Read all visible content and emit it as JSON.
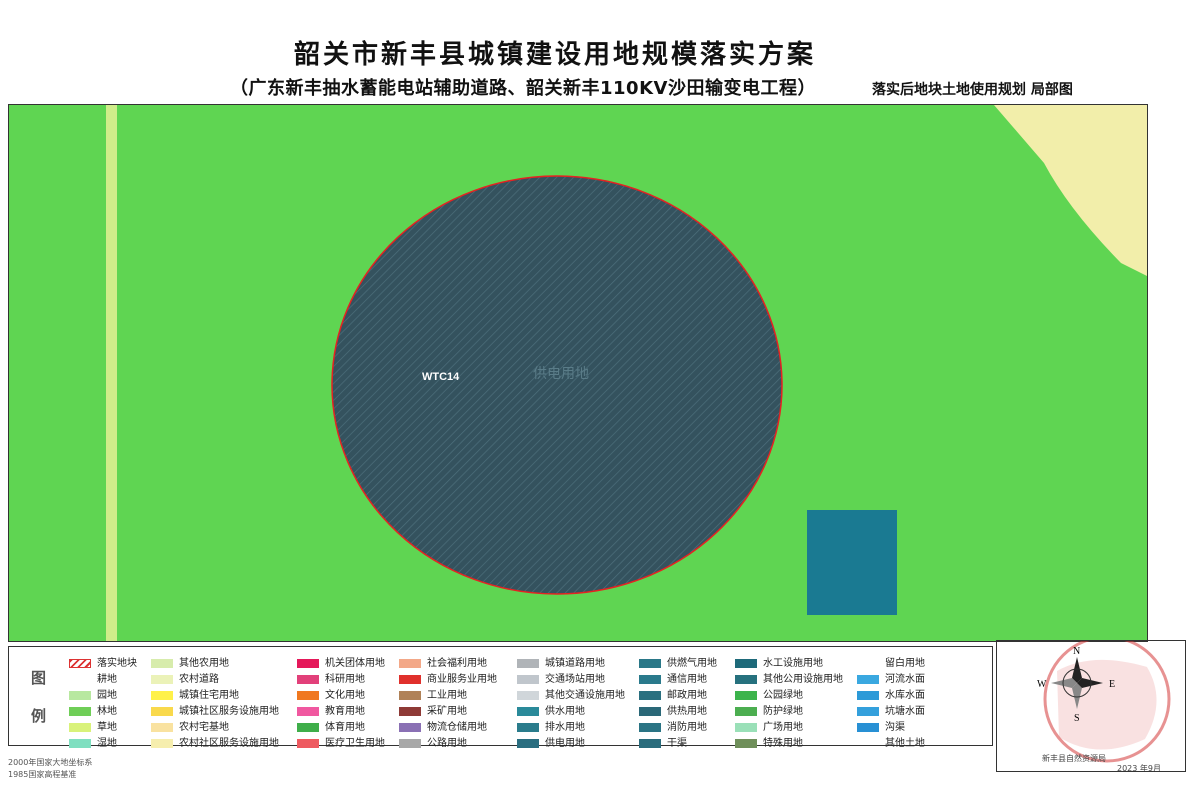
{
  "title": "韶关市新丰县城镇建设用地规模落实方案",
  "subtitle": "（广东新丰抽水蓄能电站辅助道路、韶关新丰110KV沙田输变电工程）",
  "map_caption": "落实后地块土地使用规划 局部图",
  "map": {
    "parcel_code": "WTC14",
    "parcel_label": "供电用地",
    "colors": {
      "background": "#5fd552",
      "stripe": "#f6f49e",
      "parcel": "#34525e",
      "parcel_outline": "#e52222",
      "beige": "#f2eeaa",
      "square": "#1a7a92"
    }
  },
  "legend": {
    "title_top": "图",
    "title_bottom": "例",
    "items": [
      {
        "label": "落实地块",
        "color": "hatch",
        "col": 0,
        "row": 0
      },
      {
        "label": "耕地",
        "color": "none",
        "col": 0,
        "row": 1
      },
      {
        "label": "园地",
        "color": "#b8e8a0",
        "col": 0,
        "row": 2
      },
      {
        "label": "林地",
        "color": "#6fce57",
        "col": 0,
        "row": 3
      },
      {
        "label": "草地",
        "color": "#d9f27a",
        "col": 0,
        "row": 4
      },
      {
        "label": "湿地",
        "color": "#7fdfc0",
        "col": 0,
        "row": 5
      },
      {
        "label": "其他农用地",
        "color": "#d7ecac",
        "col": 1,
        "row": 0
      },
      {
        "label": "农村道路",
        "color": "#ebf2b8",
        "col": 1,
        "row": 1
      },
      {
        "label": "城镇住宅用地",
        "color": "#fff14a",
        "col": 1,
        "row": 2
      },
      {
        "label": "城镇社区服务设施用地",
        "color": "#f9d94c",
        "col": 1,
        "row": 3
      },
      {
        "label": "农村宅基地",
        "color": "#f9e2a0",
        "col": 1,
        "row": 4
      },
      {
        "label": "农村社区服务设施用地",
        "color": "#f6eeae",
        "col": 1,
        "row": 5
      },
      {
        "label": "机关团体用地",
        "color": "#e5185a",
        "col": 2,
        "row": 0
      },
      {
        "label": "科研用地",
        "color": "#e2407a",
        "col": 2,
        "row": 1
      },
      {
        "label": "文化用地",
        "color": "#f07820",
        "col": 2,
        "row": 2
      },
      {
        "label": "教育用地",
        "color": "#f058a0",
        "col": 2,
        "row": 3
      },
      {
        "label": "体育用地",
        "color": "#3fae4a",
        "col": 2,
        "row": 4
      },
      {
        "label": "医疗卫生用地",
        "color": "#ee5a60",
        "col": 2,
        "row": 5
      },
      {
        "label": "社会福利用地",
        "color": "#f3a888",
        "col": 3,
        "row": 0
      },
      {
        "label": "商业服务业用地",
        "color": "#e0302c",
        "col": 3,
        "row": 1
      },
      {
        "label": "工业用地",
        "color": "#b08258",
        "col": 3,
        "row": 2
      },
      {
        "label": "采矿用地",
        "color": "#8e3a36",
        "col": 3,
        "row": 3
      },
      {
        "label": "物流仓储用地",
        "color": "#8a70b4",
        "col": 3,
        "row": 4
      },
      {
        "label": "公路用地",
        "color": "#a8a8a8",
        "col": 3,
        "row": 5
      },
      {
        "label": "城镇道路用地",
        "color": "#b0b4b8",
        "col": 4,
        "row": 0
      },
      {
        "label": "交通场站用地",
        "color": "#c0c6cc",
        "col": 4,
        "row": 1
      },
      {
        "label": "其他交通设施用地",
        "color": "#d0d6da",
        "col": 4,
        "row": 2
      },
      {
        "label": "供水用地",
        "color": "#2a8a9a",
        "col": 4,
        "row": 3
      },
      {
        "label": "排水用地",
        "color": "#2a7c8c",
        "col": 4,
        "row": 4
      },
      {
        "label": "供电用地",
        "color": "#2a6e80",
        "col": 4,
        "row": 5
      },
      {
        "label": "供燃气用地",
        "color": "#2a7888",
        "col": 5,
        "row": 0
      },
      {
        "label": "通信用地",
        "color": "#2a7a8c",
        "col": 5,
        "row": 1
      },
      {
        "label": "邮政用地",
        "color": "#2a7080",
        "col": 5,
        "row": 2
      },
      {
        "label": "供热用地",
        "color": "#2a6878",
        "col": 5,
        "row": 3
      },
      {
        "label": "消防用地",
        "color": "#2a7484",
        "col": 5,
        "row": 4
      },
      {
        "label": "干渠",
        "color": "#2a6c7c",
        "col": 5,
        "row": 5
      },
      {
        "label": "水工设施用地",
        "color": "#1e6a7a",
        "col": 6,
        "row": 0
      },
      {
        "label": "其他公用设施用地",
        "color": "#26717e",
        "col": 6,
        "row": 1
      },
      {
        "label": "公园绿地",
        "color": "#3cb44c",
        "col": 6,
        "row": 2
      },
      {
        "label": "防护绿地",
        "color": "#4cae50",
        "col": 6,
        "row": 3
      },
      {
        "label": "广场用地",
        "color": "#9ae0b8",
        "col": 6,
        "row": 4
      },
      {
        "label": "特殊用地",
        "color": "#6f8f5a",
        "col": 6,
        "row": 5
      },
      {
        "label": "留白用地",
        "color": "none",
        "col": 7,
        "row": 0
      },
      {
        "label": "河流水面",
        "color": "#3aa8e0",
        "col": 7,
        "row": 1
      },
      {
        "label": "水库水面",
        "color": "#2c9ad8",
        "col": 7,
        "row": 2
      },
      {
        "label": "坑塘水面",
        "color": "#34a0dc",
        "col": 7,
        "row": 3
      },
      {
        "label": "沟渠",
        "color": "#2890d4",
        "col": 7,
        "row": 4
      },
      {
        "label": "其他土地",
        "color": "none",
        "col": 7,
        "row": 5
      }
    ]
  },
  "compass": {
    "n": "N",
    "s": "S",
    "e": "E",
    "w": "W",
    "org_text": "新丰县自然资源局",
    "date_text": "2023 年9月"
  },
  "coord_notes": {
    "line1": "2000年国家大地坐标系",
    "line2": "1985国家高程基准"
  }
}
